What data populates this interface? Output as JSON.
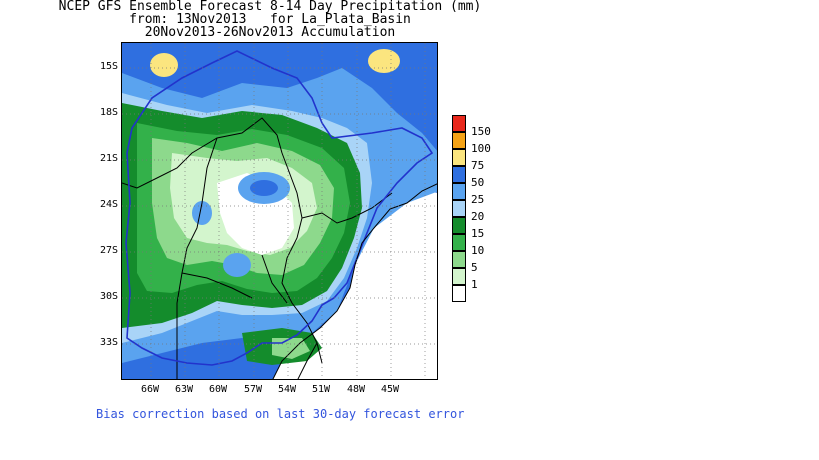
{
  "title": {
    "line1": "NCEP GFS Ensemble Forecast 8-14 Day Precipitation (mm)",
    "line2": "from: 13Nov2013   for La_Plata_Basin",
    "line3": "20Nov2013-26Nov2013 Accumulation"
  },
  "map": {
    "y_labels": [
      "15S",
      "18S",
      "21S",
      "24S",
      "27S",
      "30S",
      "33S"
    ],
    "x_labels": [
      "66W",
      "63W",
      "60W",
      "57W",
      "54W",
      "51W",
      "48W",
      "45W"
    ]
  },
  "legend": {
    "items": [
      {
        "label": "150",
        "color": "#e8281c"
      },
      {
        "label": "100",
        "color": "#f5a316"
      },
      {
        "label": "75",
        "color": "#fbe57f"
      },
      {
        "label": "50",
        "color": "#2f6fe0"
      },
      {
        "label": "25",
        "color": "#5aa3ef"
      },
      {
        "label": "20",
        "color": "#a9d4f7"
      },
      {
        "label": "15",
        "color": "#148c2c"
      },
      {
        "label": "10",
        "color": "#33b14a"
      },
      {
        "label": "5",
        "color": "#8dd98c"
      },
      {
        "label": "1",
        "color": "#d3f5cd"
      },
      {
        "label": "",
        "color": "#ffffff"
      }
    ]
  },
  "footer": "Bias correction based on last 30-day forecast error",
  "colors": {
    "basin_outline": "#2233cc",
    "borders": "#000000",
    "footer_text": "#3355dd"
  }
}
